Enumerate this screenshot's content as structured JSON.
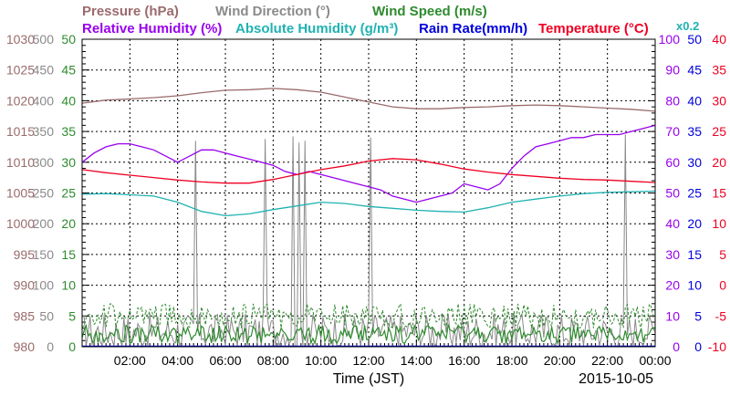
{
  "chart_data": {
    "type": "line",
    "date": "2015-10-05",
    "xlabel": "Time (JST)",
    "x_ticks": [
      "02:00",
      "04:00",
      "06:00",
      "08:00",
      "10:00",
      "12:00",
      "14:00",
      "16:00",
      "18:00",
      "20:00",
      "22:00",
      "00:00"
    ],
    "x_range_hours": [
      0,
      24
    ],
    "grid": true,
    "legend_rows": [
      [
        {
          "label": "Pressure (hPa)",
          "color": "#9b6b6b"
        },
        {
          "label": "Wind Direction (°)",
          "color": "#8a8a8a"
        },
        {
          "label": "Wind Speed (m/s)",
          "color": "#2e8b2e"
        }
      ],
      [
        {
          "label": "Relative Humidity (%)",
          "color": "#9900ee"
        },
        {
          "label": "Absolute Humidity (g/m³)",
          "color": "#20b2b2"
        },
        {
          "label": "Rain Rate(mm/h)",
          "color": "#0000dd"
        },
        {
          "label": "Temperature (°C)",
          "color": "#ee0022"
        },
        {
          "label": "x0.2",
          "color": "#20b2b2"
        }
      ]
    ],
    "axes": [
      {
        "name": "pressure",
        "side": "left",
        "range": [
          980,
          1030
        ],
        "ticks": [
          "980",
          "985",
          "990",
          "995",
          "1000",
          "1005",
          "1010",
          "1015",
          "1020",
          "1025",
          "1030"
        ],
        "color": "#9b6b6b"
      },
      {
        "name": "wind-direction",
        "side": "left",
        "range": [
          0,
          500
        ],
        "ticks": [
          "0",
          "50",
          "100",
          "150",
          "200",
          "250",
          "300",
          "350",
          "400",
          "450",
          "500"
        ],
        "color": "#8a8a8a"
      },
      {
        "name": "wind-speed",
        "side": "left",
        "range": [
          0,
          50
        ],
        "ticks": [
          "0",
          "5",
          "10",
          "15",
          "20",
          "25",
          "30",
          "35",
          "40",
          "45",
          "50"
        ],
        "color": "#2e8b2e"
      },
      {
        "name": "relative-humidity",
        "side": "right",
        "range": [
          0,
          100
        ],
        "ticks": [
          "0",
          "10",
          "20",
          "30",
          "40",
          "50",
          "60",
          "70",
          "80",
          "90",
          "100"
        ],
        "color": "#9900ee"
      },
      {
        "name": "rain-rate",
        "side": "right",
        "range": [
          0,
          50
        ],
        "ticks": [
          "0",
          "5",
          "10",
          "15",
          "20",
          "25",
          "30",
          "35",
          "40",
          "45",
          "50"
        ],
        "color": "#0000dd"
      },
      {
        "name": "temperature",
        "side": "right",
        "range": [
          -10,
          40
        ],
        "ticks": [
          "-10",
          "-5",
          "0",
          "5",
          "10",
          "15",
          "20",
          "25",
          "30",
          "35",
          "40"
        ],
        "color": "#ee0022"
      }
    ],
    "series": [
      {
        "name": "Pressure (hPa)",
        "color": "#9b6b6b",
        "axis": "pressure",
        "x": [
          0,
          1,
          2,
          3,
          4,
          5,
          6,
          7,
          8,
          9,
          10,
          11,
          12,
          13,
          14,
          15,
          16,
          17,
          18,
          19,
          20,
          21,
          22,
          23,
          24
        ],
        "y": [
          1019.6,
          1020.1,
          1020.3,
          1020.5,
          1020.8,
          1021.3,
          1021.7,
          1021.8,
          1022.0,
          1021.8,
          1021.4,
          1020.6,
          1019.8,
          1019.0,
          1018.7,
          1018.7,
          1018.9,
          1019.0,
          1019.2,
          1019.3,
          1019.2,
          1019.0,
          1018.8,
          1018.6,
          1018.3
        ]
      },
      {
        "name": "Relative Humidity (%)",
        "color": "#9900ee",
        "axis": "relative-humidity",
        "x": [
          0,
          0.5,
          1,
          1.5,
          2,
          2.5,
          3,
          3.5,
          4,
          4.5,
          5,
          5.5,
          6,
          6.5,
          7,
          7.5,
          8,
          8.5,
          9,
          9.5,
          10,
          10.5,
          11,
          11.5,
          12,
          12.5,
          13,
          13.5,
          14,
          14.5,
          15,
          15.5,
          16,
          16.5,
          17,
          17.5,
          18,
          18.5,
          19,
          19.5,
          20,
          20.5,
          21,
          21.5,
          22,
          22.5,
          23,
          23.5,
          24
        ],
        "y": [
          60,
          63,
          65,
          66,
          66,
          65,
          64,
          62,
          60,
          62,
          64,
          64,
          63,
          62,
          61,
          60,
          59,
          57,
          56,
          57,
          56,
          55,
          54,
          53,
          52,
          51,
          49,
          48,
          47,
          48,
          49,
          50,
          53,
          52,
          51,
          53,
          58,
          62,
          65,
          66,
          67,
          68,
          68,
          69,
          69,
          69,
          70,
          71,
          72
        ]
      },
      {
        "name": "Temperature (°C)",
        "color": "#ee0022",
        "axis": "temperature",
        "x": [
          0,
          1,
          2,
          3,
          4,
          5,
          6,
          7,
          8,
          9,
          10,
          11,
          12,
          13,
          14,
          15,
          16,
          17,
          18,
          19,
          20,
          21,
          22,
          23,
          24
        ],
        "y": [
          18.8,
          18.3,
          17.9,
          17.5,
          17.1,
          16.8,
          16.6,
          16.6,
          17.2,
          18.0,
          18.8,
          19.4,
          20.2,
          20.6,
          20.4,
          19.7,
          18.9,
          18.4,
          18.0,
          17.7,
          17.4,
          17.2,
          17.1,
          16.9,
          16.7
        ]
      },
      {
        "name": "Absolute Humidity (g/m³)",
        "color": "#20b2b2",
        "axis": "wind-speed",
        "x": [
          0,
          1,
          2,
          3,
          4,
          5,
          6,
          7,
          8,
          9,
          10,
          11,
          12,
          13,
          14,
          15,
          16,
          17,
          18,
          19,
          20,
          21,
          22,
          23,
          24
        ],
        "y": [
          24.8,
          24.9,
          24.7,
          24.5,
          23.5,
          22.0,
          21.3,
          21.6,
          22.3,
          22.9,
          23.5,
          23.3,
          22.8,
          22.5,
          22.2,
          22.0,
          21.9,
          22.6,
          23.5,
          24.0,
          24.5,
          24.9,
          25.1,
          25.2,
          25.3
        ]
      },
      {
        "name": "Wind Direction (°)",
        "color": "#8a8a8a",
        "axis": "wind-direction",
        "baseline": 25,
        "spikes": [
          {
            "x": 4.75,
            "y": 335
          },
          {
            "x": 7.65,
            "y": 338
          },
          {
            "x": 8.85,
            "y": 342
          },
          {
            "x": 9.05,
            "y": 332
          },
          {
            "x": 9.3,
            "y": 335
          },
          {
            "x": 12.1,
            "y": 340
          },
          {
            "x": 22.75,
            "y": 345
          }
        ]
      },
      {
        "name": "Wind Speed (m/s)",
        "color": "#2e8b2e",
        "axis": "wind-speed",
        "baseline": 2,
        "gust_baseline": 5
      }
    ]
  }
}
